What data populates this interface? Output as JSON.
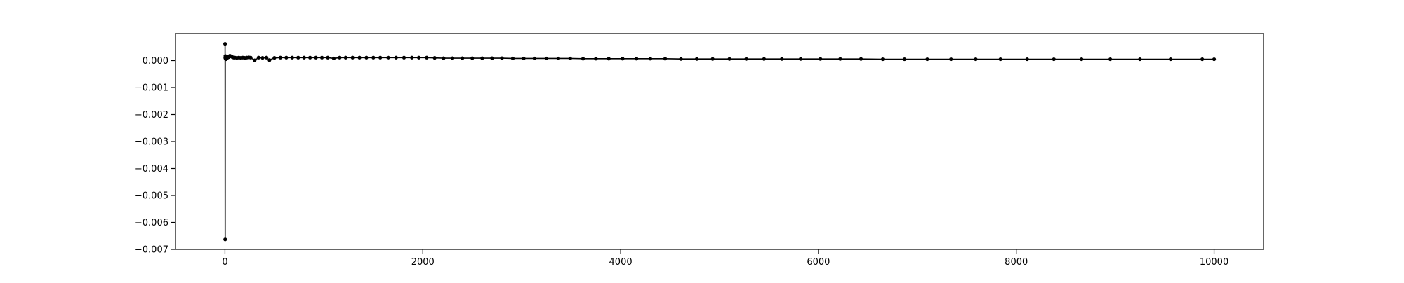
{
  "chart_data": {
    "type": "line",
    "title": "",
    "xlabel": "",
    "ylabel": "",
    "xlim": [
      -500,
      10500
    ],
    "ylim": [
      -0.007,
      0.001
    ],
    "x_ticks": [
      0,
      2000,
      4000,
      6000,
      8000,
      10000
    ],
    "x_tick_labels": [
      "0",
      "2000",
      "4000",
      "6000",
      "8000",
      "10000"
    ],
    "y_ticks": [
      -0.007,
      -0.006,
      -0.005,
      -0.004,
      -0.003,
      -0.002,
      -0.001,
      0.0
    ],
    "y_tick_labels": [
      "−0.007",
      "−0.006",
      "−0.005",
      "−0.004",
      "−0.003",
      "−0.002",
      "−0.001",
      "0.000"
    ],
    "grid": false,
    "legend": "none",
    "colors": {
      "line": "#000000",
      "marker": "#000000",
      "axes": "#000000",
      "background": "#ffffff"
    },
    "series": [
      {
        "points": [
          [
            1,
            0.00062
          ],
          [
            2,
            -0.00663
          ],
          [
            3,
            0.0001
          ],
          [
            4,
            0.00017
          ],
          [
            5,
            8e-05
          ],
          [
            10,
            5e-05
          ],
          [
            20,
            8e-05
          ],
          [
            30,
            0.00015
          ],
          [
            40,
            0.00013
          ],
          [
            50,
            0.00018
          ],
          [
            60,
            0.00016
          ],
          [
            70,
            0.00014
          ],
          [
            80,
            0.00012
          ],
          [
            90,
            0.00011
          ],
          [
            100,
            0.00011
          ],
          [
            120,
            0.0001
          ],
          [
            140,
            0.00011
          ],
          [
            160,
            0.0001
          ],
          [
            180,
            0.00011
          ],
          [
            200,
            0.0001
          ],
          [
            220,
            0.00011
          ],
          [
            240,
            0.00012
          ],
          [
            260,
            0.00011
          ],
          [
            300,
            1e-05
          ],
          [
            340,
            0.00011
          ],
          [
            380,
            0.0001
          ],
          [
            420,
            0.00011
          ],
          [
            450,
            2e-05
          ],
          [
            500,
            0.0001
          ],
          [
            560,
            0.00011
          ],
          [
            620,
            0.00011
          ],
          [
            680,
            0.00011
          ],
          [
            740,
            0.00011
          ],
          [
            800,
            0.00011
          ],
          [
            860,
            0.00011
          ],
          [
            920,
            0.00011
          ],
          [
            980,
            0.00011
          ],
          [
            1040,
            0.00011
          ],
          [
            1100,
            8e-05
          ],
          [
            1160,
            0.00011
          ],
          [
            1220,
            0.00011
          ],
          [
            1290,
            0.00011
          ],
          [
            1360,
            0.00011
          ],
          [
            1430,
            0.00011
          ],
          [
            1500,
            0.00011
          ],
          [
            1570,
            0.00011
          ],
          [
            1650,
            0.00011
          ],
          [
            1730,
            0.00011
          ],
          [
            1810,
            0.00011
          ],
          [
            1890,
            0.00011
          ],
          [
            1960,
            0.00011
          ],
          [
            2040,
            0.00011
          ],
          [
            2120,
            0.0001
          ],
          [
            2210,
            9e-05
          ],
          [
            2300,
            9e-05
          ],
          [
            2400,
            9e-05
          ],
          [
            2500,
            9e-05
          ],
          [
            2600,
            9e-05
          ],
          [
            2700,
            9e-05
          ],
          [
            2800,
            9e-05
          ],
          [
            2910,
            8e-05
          ],
          [
            3020,
            8e-05
          ],
          [
            3130,
            8e-05
          ],
          [
            3250,
            8e-05
          ],
          [
            3370,
            8e-05
          ],
          [
            3490,
            8e-05
          ],
          [
            3620,
            7e-05
          ],
          [
            3750,
            7e-05
          ],
          [
            3880,
            7e-05
          ],
          [
            4020,
            7e-05
          ],
          [
            4160,
            7e-05
          ],
          [
            4300,
            7e-05
          ],
          [
            4450,
            7e-05
          ],
          [
            4610,
            6e-05
          ],
          [
            4770,
            6e-05
          ],
          [
            4930,
            6e-05
          ],
          [
            5100,
            6e-05
          ],
          [
            5270,
            6e-05
          ],
          [
            5450,
            6e-05
          ],
          [
            5630,
            6e-05
          ],
          [
            5820,
            6e-05
          ],
          [
            6020,
            6e-05
          ],
          [
            6220,
            6e-05
          ],
          [
            6430,
            6e-05
          ],
          [
            6650,
            5e-05
          ],
          [
            6870,
            5e-05
          ],
          [
            7100,
            5e-05
          ],
          [
            7340,
            5e-05
          ],
          [
            7590,
            5e-05
          ],
          [
            7840,
            5e-05
          ],
          [
            8110,
            5e-05
          ],
          [
            8380,
            5e-05
          ],
          [
            8660,
            5e-05
          ],
          [
            8950,
            5e-05
          ],
          [
            9250,
            5e-05
          ],
          [
            9560,
            5e-05
          ],
          [
            9880,
            5e-05
          ],
          [
            10000,
            5e-05
          ]
        ]
      }
    ]
  }
}
